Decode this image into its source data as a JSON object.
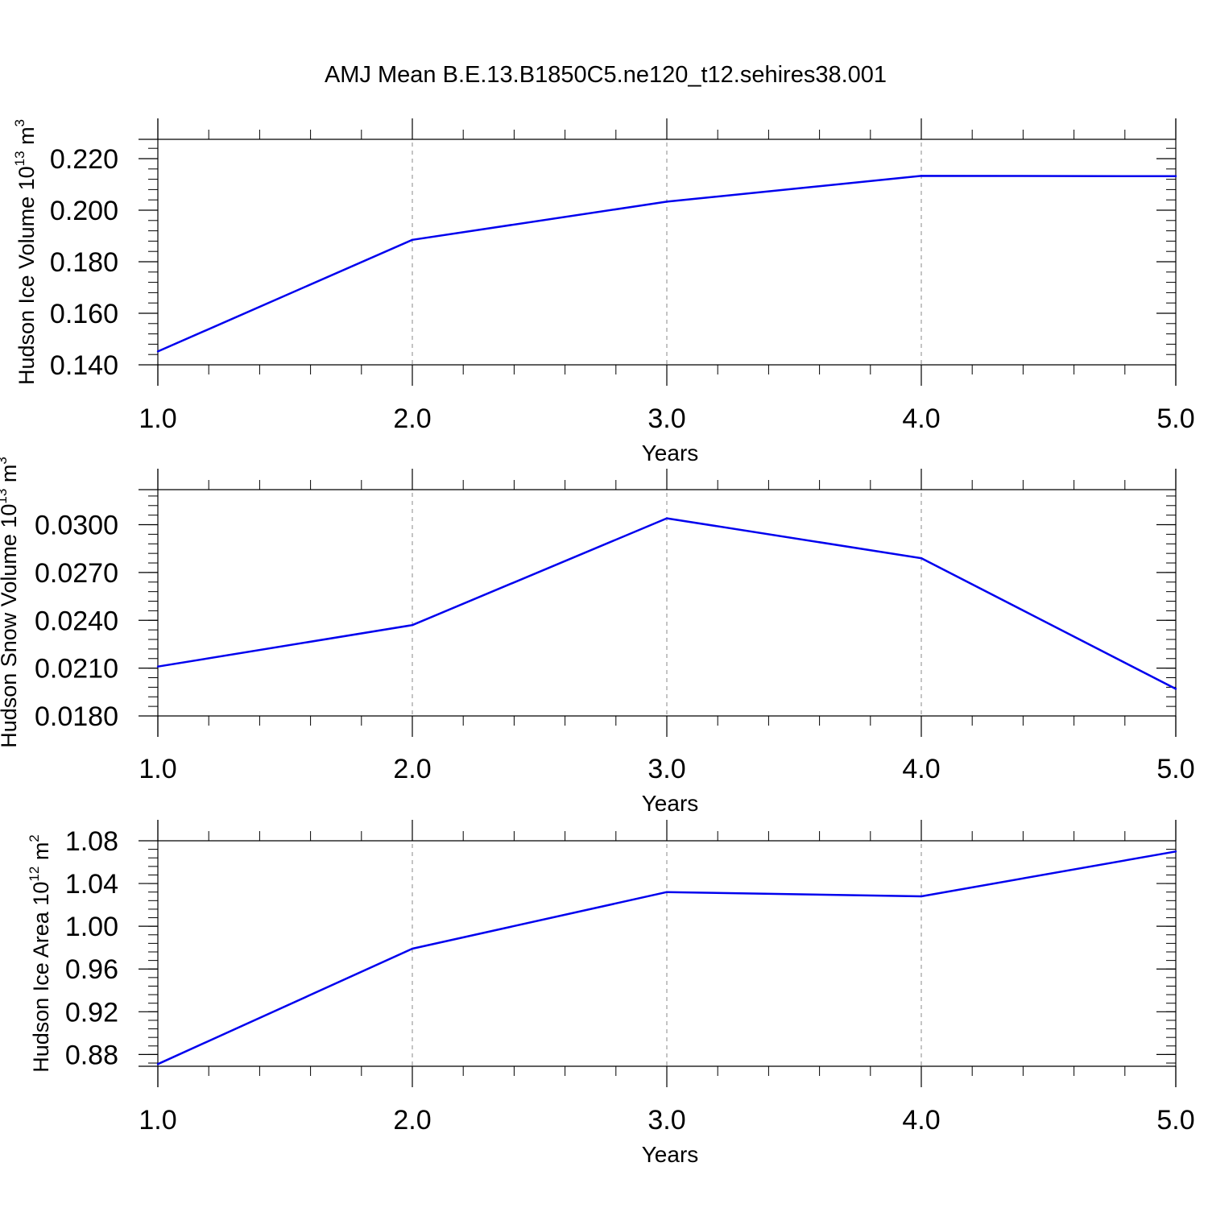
{
  "title": "AMJ Mean B.E.13.B1850C5.ne120_t12.sehires38.001",
  "line_color": "#0000ee",
  "chart_data": [
    {
      "type": "line",
      "xlabel": "Years",
      "ylabel": {
        "text": "Hudson Ice Volume 10",
        "exp": "13",
        "unit": " m",
        "unit_exp": "3"
      },
      "xlim": [
        1.0,
        5.0
      ],
      "ylim": [
        0.14,
        0.2275
      ],
      "x_ticks": [
        1.0,
        2.0,
        3.0,
        4.0,
        5.0
      ],
      "x_tick_labels": [
        "1.0",
        "2.0",
        "3.0",
        "4.0",
        "5.0"
      ],
      "y_ticks": [
        0.14,
        0.16,
        0.18,
        0.2,
        0.22
      ],
      "y_tick_labels": [
        "0.140",
        "0.160",
        "0.180",
        "0.200",
        "0.220"
      ],
      "x": [
        1.0,
        2.0,
        3.0,
        4.0,
        5.0
      ],
      "y": [
        0.1452,
        0.1885,
        0.2033,
        0.2133,
        0.2132
      ]
    },
    {
      "type": "line",
      "xlabel": "Years",
      "ylabel": {
        "text": "Hudson Snow Volume 10",
        "exp": "13",
        "unit": " m",
        "unit_exp": "3"
      },
      "xlim": [
        1.0,
        5.0
      ],
      "ylim": [
        0.018,
        0.0322
      ],
      "x_ticks": [
        1.0,
        2.0,
        3.0,
        4.0,
        5.0
      ],
      "x_tick_labels": [
        "1.0",
        "2.0",
        "3.0",
        "4.0",
        "5.0"
      ],
      "y_ticks": [
        0.018,
        0.021,
        0.024,
        0.027,
        0.03
      ],
      "y_tick_labels": [
        "0.0180",
        "0.0210",
        "0.0240",
        "0.0270",
        "0.0300"
      ],
      "x": [
        1.0,
        2.0,
        3.0,
        4.0,
        5.0
      ],
      "y": [
        0.0211,
        0.0237,
        0.0304,
        0.0279,
        0.0197
      ]
    },
    {
      "type": "line",
      "xlabel": "Years",
      "ylabel": {
        "text": "Hudson Ice Area 10",
        "exp": "12",
        "unit": " m",
        "unit_exp": "2"
      },
      "xlim": [
        1.0,
        5.0
      ],
      "ylim": [
        0.869,
        1.08
      ],
      "x_ticks": [
        1.0,
        2.0,
        3.0,
        4.0,
        5.0
      ],
      "x_tick_labels": [
        "1.0",
        "2.0",
        "3.0",
        "4.0",
        "5.0"
      ],
      "y_ticks": [
        0.88,
        0.92,
        0.96,
        1.0,
        1.04,
        1.08
      ],
      "y_tick_labels": [
        "0.88",
        "0.92",
        "0.96",
        "1.00",
        "1.04",
        "1.08"
      ],
      "x": [
        1.0,
        2.0,
        3.0,
        4.0,
        5.0
      ],
      "y": [
        0.871,
        0.979,
        1.032,
        1.028,
        1.07
      ]
    }
  ]
}
